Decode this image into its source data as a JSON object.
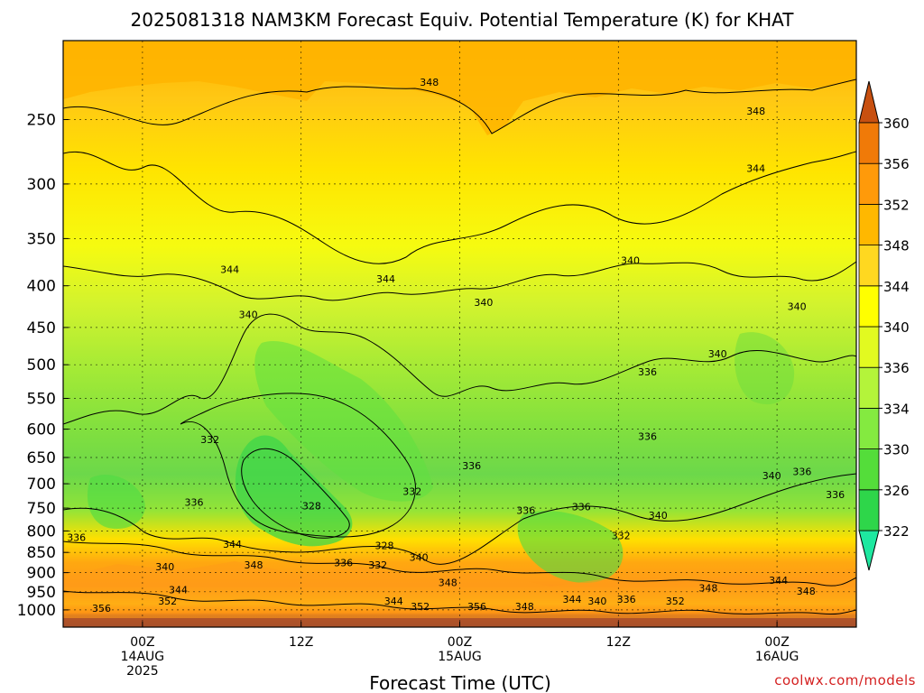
{
  "chart_data": {
    "type": "heatmap",
    "title": "2025081318 NAM3KM Forecast Equiv. Potential Temperature (K) for KHAT",
    "xlabel": "Forecast Time (UTC)",
    "ylabel": "",
    "y_scale": "log",
    "y_inverted": true,
    "ylim": [
      200,
      1050
    ],
    "y_ticks": [
      250,
      300,
      350,
      400,
      450,
      500,
      550,
      600,
      650,
      700,
      750,
      800,
      850,
      900,
      950,
      1000
    ],
    "x_ticks": [
      {
        "hour": 6,
        "line1": "00Z",
        "line2": "14AUG",
        "line3": "2025"
      },
      {
        "hour": 18,
        "line1": "12Z",
        "line2": "",
        "line3": ""
      },
      {
        "hour": 30,
        "line1": "00Z",
        "line2": "15AUG",
        "line3": ""
      },
      {
        "hour": 42,
        "line1": "12Z",
        "line2": "",
        "line3": ""
      },
      {
        "hour": 54,
        "line1": "00Z",
        "line2": "16AUG",
        "line3": ""
      }
    ],
    "xlim": [
      0,
      60
    ],
    "grid": true,
    "colorbar": {
      "levels": [
        322,
        326,
        330,
        334,
        336,
        340,
        344,
        348,
        352,
        356,
        360
      ],
      "labels": [
        "322",
        "326",
        "330",
        "334",
        "336",
        "340",
        "344",
        "348",
        "352",
        "356",
        "360"
      ],
      "colors": [
        "#1ee8a0",
        "#2ed64a",
        "#54dd3a",
        "#84ea40",
        "#b4f43a",
        "#e2fa20",
        "#ffff00",
        "#ffd820",
        "#ffb800",
        "#ff9a0a",
        "#f07a08",
        "#c85010"
      ]
    },
    "contour_labels": [
      {
        "value": "348",
        "hour": 27.7,
        "p": 225
      },
      {
        "value": "348",
        "hour": 52.4,
        "p": 244
      },
      {
        "value": "344",
        "hour": 52.4,
        "p": 287
      },
      {
        "value": "344",
        "hour": 12.6,
        "p": 382
      },
      {
        "value": "344",
        "hour": 24.4,
        "p": 392
      },
      {
        "value": "340",
        "hour": 42.9,
        "p": 372
      },
      {
        "value": "340",
        "hour": 31.8,
        "p": 419
      },
      {
        "value": "340",
        "hour": 55.5,
        "p": 424
      },
      {
        "value": "340",
        "hour": 14.0,
        "p": 434
      },
      {
        "value": "340",
        "hour": 49.5,
        "p": 485
      },
      {
        "value": "336",
        "hour": 44.2,
        "p": 510
      },
      {
        "value": "332",
        "hour": 11.1,
        "p": 618
      },
      {
        "value": "336",
        "hour": 44.2,
        "p": 612
      },
      {
        "value": "336",
        "hour": 30.9,
        "p": 665
      },
      {
        "value": "340",
        "hour": 53.6,
        "p": 684
      },
      {
        "value": "336",
        "hour": 55.9,
        "p": 676
      },
      {
        "value": "332",
        "hour": 26.4,
        "p": 715
      },
      {
        "value": "336",
        "hour": 58.4,
        "p": 722
      },
      {
        "value": "336",
        "hour": 9.9,
        "p": 737
      },
      {
        "value": "328",
        "hour": 18.8,
        "p": 745
      },
      {
        "value": "336",
        "hour": 35.0,
        "p": 755
      },
      {
        "value": "336",
        "hour": 39.2,
        "p": 747
      },
      {
        "value": "340",
        "hour": 45.0,
        "p": 765
      },
      {
        "value": "336",
        "hour": 1.0,
        "p": 815
      },
      {
        "value": "332",
        "hour": 42.2,
        "p": 810
      },
      {
        "value": "344",
        "hour": 12.8,
        "p": 830
      },
      {
        "value": "328",
        "hour": 24.3,
        "p": 833
      },
      {
        "value": "340",
        "hour": 26.9,
        "p": 862
      },
      {
        "value": "348",
        "hour": 14.4,
        "p": 880
      },
      {
        "value": "336",
        "hour": 21.2,
        "p": 875
      },
      {
        "value": "332",
        "hour": 23.8,
        "p": 880
      },
      {
        "value": "340",
        "hour": 7.7,
        "p": 885
      },
      {
        "value": "348",
        "hour": 29.1,
        "p": 925
      },
      {
        "value": "344",
        "hour": 54.1,
        "p": 920
      },
      {
        "value": "344",
        "hour": 8.7,
        "p": 945
      },
      {
        "value": "348",
        "hour": 48.8,
        "p": 940
      },
      {
        "value": "348",
        "hour": 56.2,
        "p": 948
      },
      {
        "value": "352",
        "hour": 7.9,
        "p": 975
      },
      {
        "value": "344",
        "hour": 25.0,
        "p": 975
      },
      {
        "value": "344",
        "hour": 38.5,
        "p": 970
      },
      {
        "value": "340",
        "hour": 40.4,
        "p": 975
      },
      {
        "value": "336",
        "hour": 42.6,
        "p": 970
      },
      {
        "value": "352",
        "hour": 46.3,
        "p": 975
      },
      {
        "value": "356",
        "hour": 2.9,
        "p": 995
      },
      {
        "value": "352",
        "hour": 27.0,
        "p": 990
      },
      {
        "value": "356",
        "hour": 31.3,
        "p": 990
      },
      {
        "value": "348",
        "hour": 34.9,
        "p": 990
      }
    ]
  },
  "watermark": "coolwx.com/models"
}
